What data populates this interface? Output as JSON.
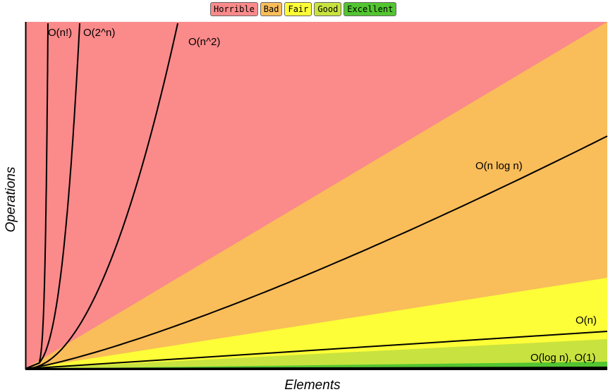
{
  "legend": [
    {
      "label": "Horrible",
      "color": "#fb8a8a"
    },
    {
      "label": "Bad",
      "color": "#f9bd5a"
    },
    {
      "label": "Fair",
      "color": "#fdfd38"
    },
    {
      "label": "Good",
      "color": "#c8e33f"
    },
    {
      "label": "Excellent",
      "color": "#52c531"
    }
  ],
  "chart_data": {
    "type": "line",
    "xlabel": "Elements",
    "ylabel": "Operations",
    "tick_labels": false,
    "regions": [
      {
        "name": "Horrible",
        "color": "#fb8a8a"
      },
      {
        "name": "Bad",
        "color": "#f9bd5a"
      },
      {
        "name": "Fair",
        "color": "#fdfd38"
      },
      {
        "name": "Good",
        "color": "#c8e33f"
      },
      {
        "name": "Excellent",
        "color": "#52c531"
      }
    ],
    "series": [
      {
        "name": "O(n!)",
        "label": "O(n!)"
      },
      {
        "name": "O(2^n)",
        "label": "O(2^n)"
      },
      {
        "name": "O(n^2)",
        "label": "O(n^2)"
      },
      {
        "name": "O(n log n)",
        "label": "O(n log n)"
      },
      {
        "name": "O(n)",
        "label": "O(n)"
      },
      {
        "name": "O(log n), O(1)",
        "label": "O(log n), O(1)"
      }
    ]
  }
}
